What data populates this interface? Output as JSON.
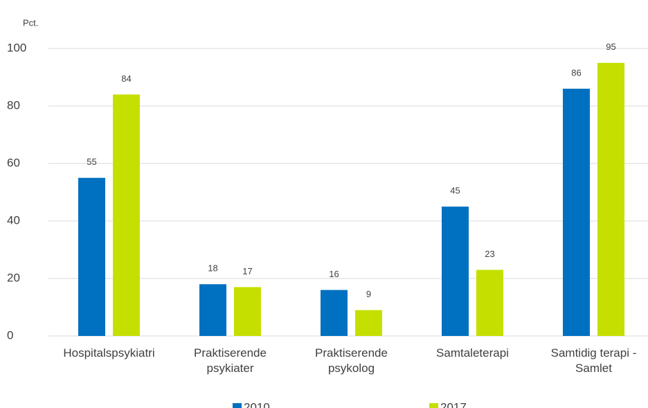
{
  "chart_data": {
    "type": "bar",
    "y_label": "Pct.",
    "categories": [
      "Hospitalspsykiatri",
      "Praktiserende psykiater",
      "Praktiserende psykolog",
      "Samtaleterapi",
      "Samtidig terapi - Samlet"
    ],
    "series": [
      {
        "name": "2010",
        "color": "#0070c0",
        "values": [
          55,
          18,
          16,
          45,
          86
        ]
      },
      {
        "name": "2017",
        "color": "#c5e000",
        "values": [
          84,
          17,
          9,
          23,
          95
        ]
      }
    ],
    "ylim": [
      0,
      100
    ],
    "yticks": [
      0,
      20,
      40,
      60,
      80,
      100
    ],
    "grid": true,
    "legend": "bottom"
  }
}
